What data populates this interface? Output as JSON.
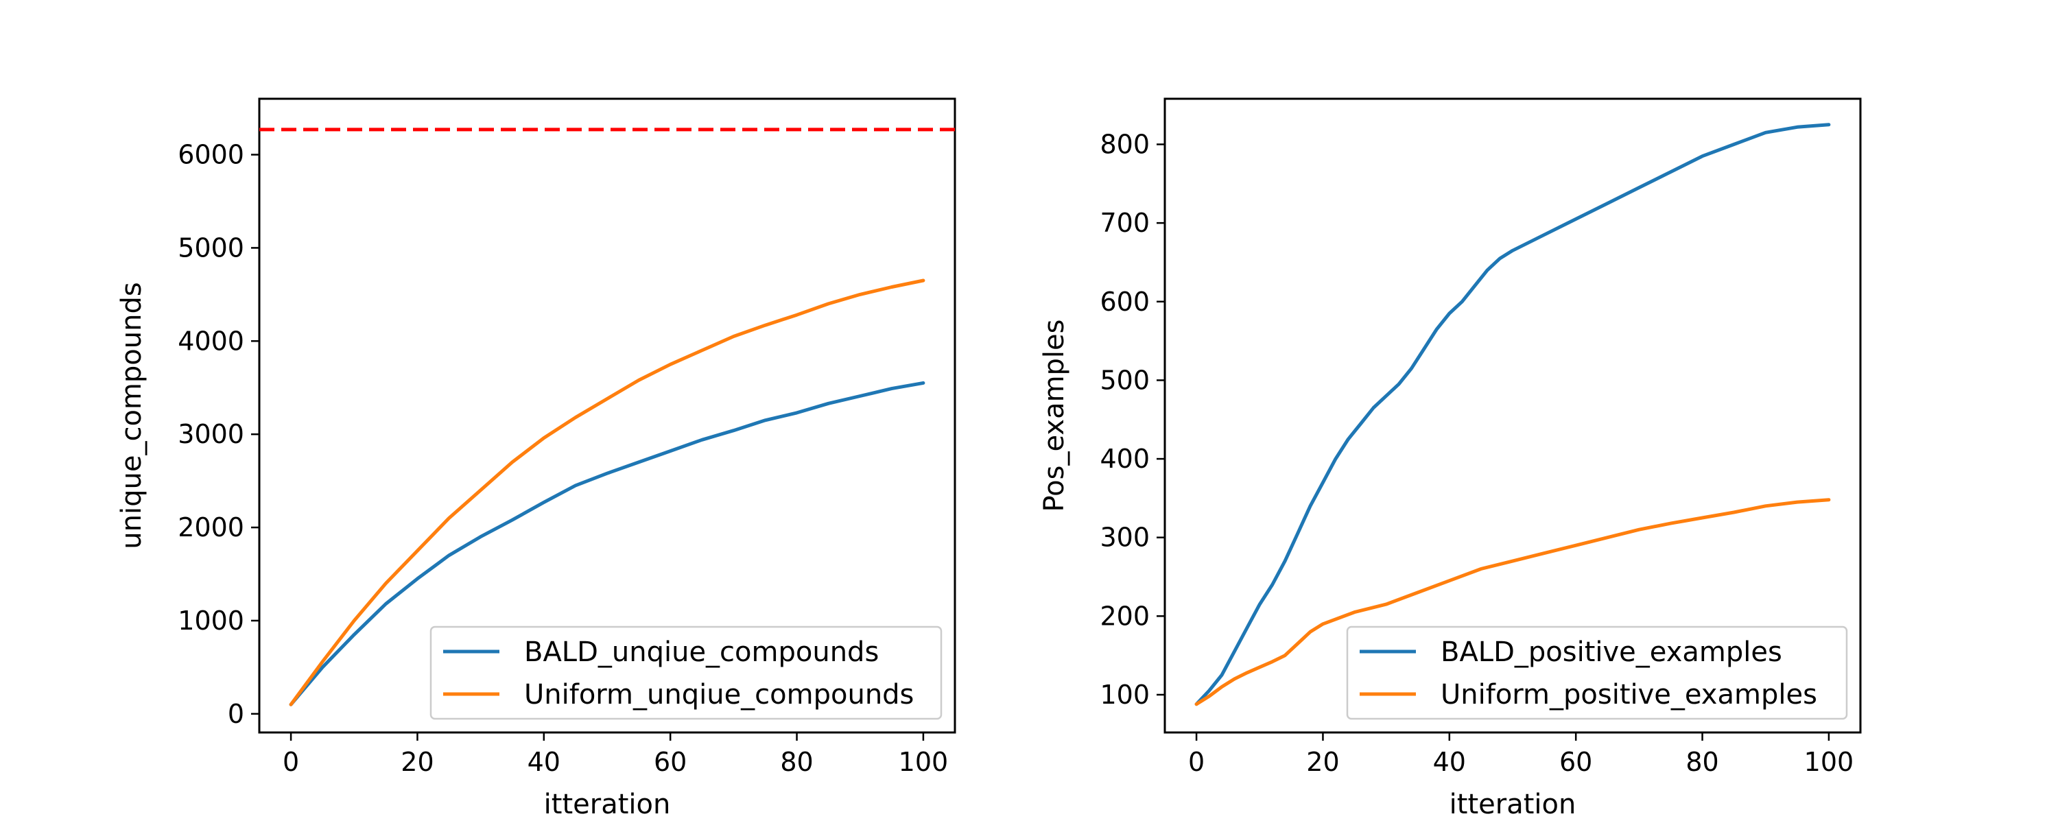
{
  "chart_data": [
    {
      "type": "line",
      "xlabel": "itteration",
      "ylabel": "unique_compounds",
      "xlim": [
        -5,
        105
      ],
      "ylim": [
        -200,
        6600
      ],
      "xticks": [
        0,
        20,
        40,
        60,
        80,
        100
      ],
      "yticks": [
        0,
        1000,
        2000,
        3000,
        4000,
        5000,
        6000
      ],
      "grid": false,
      "legend_position": "lower-right",
      "hline": {
        "y": 6270,
        "color": "#ff0000",
        "style": "dashed"
      },
      "series": [
        {
          "name": "BALD_unqiue_compounds",
          "color": "#1f77b4",
          "x": [
            0,
            5,
            10,
            15,
            20,
            25,
            30,
            35,
            40,
            45,
            50,
            55,
            60,
            65,
            70,
            75,
            80,
            85,
            90,
            95,
            100
          ],
          "y": [
            100,
            500,
            850,
            1180,
            1450,
            1700,
            1900,
            2080,
            2270,
            2450,
            2580,
            2700,
            2820,
            2940,
            3040,
            3150,
            3230,
            3330,
            3410,
            3490,
            3550
          ]
        },
        {
          "name": "Uniform_unqiue_compounds",
          "color": "#ff7f0e",
          "x": [
            0,
            5,
            10,
            15,
            20,
            25,
            30,
            35,
            40,
            45,
            50,
            55,
            60,
            65,
            70,
            75,
            80,
            85,
            90,
            95,
            100
          ],
          "y": [
            100,
            560,
            1000,
            1400,
            1750,
            2100,
            2400,
            2700,
            2960,
            3180,
            3380,
            3580,
            3750,
            3900,
            4050,
            4170,
            4280,
            4400,
            4500,
            4580,
            4650
          ]
        }
      ]
    },
    {
      "type": "line",
      "xlabel": "itteration",
      "ylabel": "Pos_examples",
      "xlim": [
        -5,
        105
      ],
      "ylim": [
        52,
        858
      ],
      "xticks": [
        0,
        20,
        40,
        60,
        80,
        100
      ],
      "yticks": [
        100,
        200,
        300,
        400,
        500,
        600,
        700,
        800
      ],
      "grid": false,
      "legend_position": "lower-right",
      "series": [
        {
          "name": "BALD_positive_examples",
          "color": "#1f77b4",
          "x": [
            0,
            2,
            4,
            6,
            8,
            10,
            12,
            14,
            16,
            18,
            20,
            22,
            24,
            26,
            28,
            30,
            32,
            34,
            36,
            38,
            40,
            42,
            44,
            46,
            48,
            50,
            55,
            60,
            65,
            70,
            75,
            80,
            85,
            90,
            95,
            100
          ],
          "y": [
            88,
            105,
            125,
            155,
            185,
            215,
            240,
            270,
            305,
            340,
            370,
            400,
            425,
            445,
            465,
            480,
            495,
            515,
            540,
            565,
            585,
            600,
            620,
            640,
            655,
            665,
            685,
            705,
            725,
            745,
            765,
            785,
            800,
            815,
            822,
            825
          ]
        },
        {
          "name": "Uniform_positive_examples",
          "color": "#ff7f0e",
          "x": [
            0,
            2,
            4,
            6,
            8,
            10,
            12,
            14,
            16,
            18,
            20,
            25,
            30,
            35,
            40,
            45,
            50,
            55,
            60,
            65,
            70,
            75,
            80,
            85,
            90,
            95,
            100
          ],
          "y": [
            88,
            98,
            110,
            120,
            128,
            135,
            142,
            150,
            165,
            180,
            190,
            205,
            215,
            230,
            245,
            260,
            270,
            280,
            290,
            300,
            310,
            318,
            325,
            332,
            340,
            345,
            348
          ]
        }
      ]
    }
  ]
}
